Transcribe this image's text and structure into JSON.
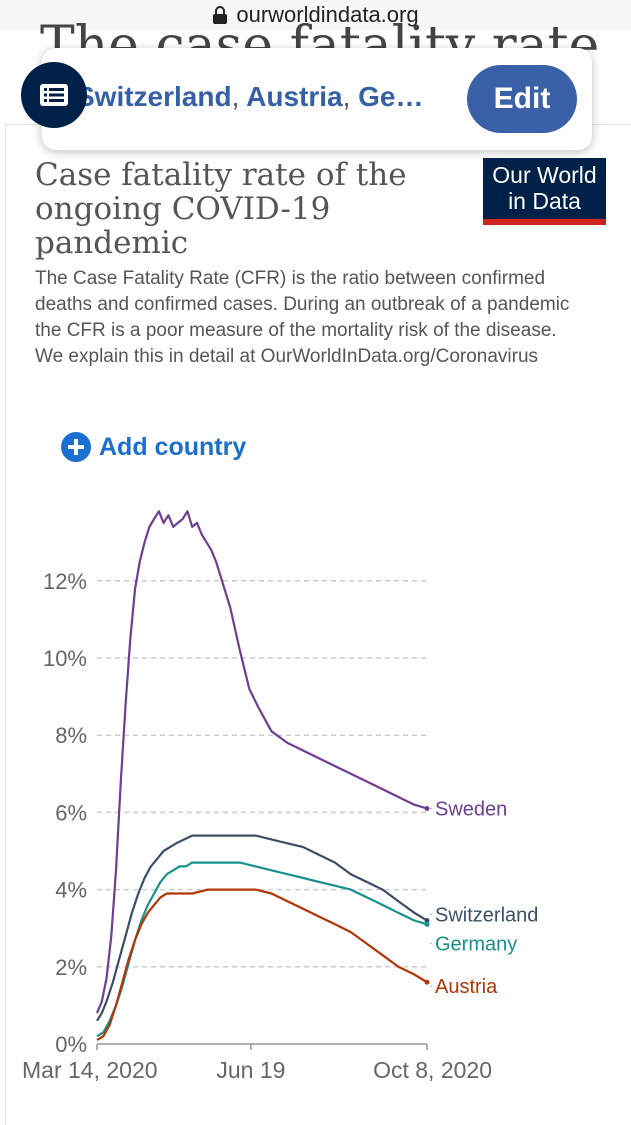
{
  "browser": {
    "url": "ourworldindata.org"
  },
  "header": {
    "ghost_title": "The case fatality rate",
    "countries": [
      "Switzerland",
      "Austria",
      "Ge…"
    ],
    "separator": ",",
    "edit_label": "Edit"
  },
  "logo": {
    "line1": "Our World",
    "line2": "in Data"
  },
  "title": "Case fatality rate of the ongoing COVID-19 pandemic",
  "subtitle": "The Case Fatality Rate (CFR) is the ratio between confirmed deaths and confirmed cases. During an outbreak of a pandemic the CFR is a poor measure of the mortality risk of the disease. We explain this in detail at OurWorldInData.org/Coronavirus",
  "add_country_label": "Add country",
  "colors": {
    "Sweden": "#6d3e91",
    "Switzerland": "#3c4e66",
    "Germany": "#18908b",
    "Austria": "#b13507",
    "grid": "#cccccc",
    "accent": "#1b6fd0"
  },
  "chart_data": {
    "type": "line",
    "title": "Case fatality rate of the ongoing COVID-19 pandemic",
    "xlabel": "",
    "ylabel": "",
    "x_unit": "days since Mar 14, 2020",
    "xlim": [
      0,
      208
    ],
    "ylim": [
      0,
      14
    ],
    "y_ticks": [
      0,
      2,
      4,
      6,
      8,
      10,
      12
    ],
    "y_tick_labels": [
      "0%",
      "2%",
      "4%",
      "6%",
      "8%",
      "10%",
      "12%"
    ],
    "x_tick_labels": [
      {
        "day": 0,
        "label": "Mar 14, 2020"
      },
      {
        "day": 97,
        "label": "Jun 19"
      },
      {
        "day": 208,
        "label": "Oct 8, 2020"
      }
    ],
    "series": [
      {
        "name": "Sweden",
        "x": [
          0,
          3,
          6,
          9,
          12,
          15,
          18,
          21,
          24,
          27,
          30,
          33,
          36,
          39,
          42,
          45,
          48,
          51,
          54,
          57,
          60,
          63,
          66,
          69,
          72,
          75,
          78,
          84,
          90,
          96,
          102,
          110,
          120,
          130,
          140,
          150,
          160,
          170,
          180,
          190,
          200,
          208
        ],
        "y": [
          0.8,
          1.1,
          1.7,
          2.8,
          4.5,
          6.8,
          8.8,
          10.5,
          11.8,
          12.5,
          13.0,
          13.4,
          13.6,
          13.8,
          13.5,
          13.7,
          13.4,
          13.5,
          13.6,
          13.8,
          13.4,
          13.5,
          13.2,
          13.0,
          12.8,
          12.5,
          12.1,
          11.3,
          10.2,
          9.2,
          8.7,
          8.1,
          7.8,
          7.6,
          7.4,
          7.2,
          7.0,
          6.8,
          6.6,
          6.4,
          6.2,
          6.1
        ]
      },
      {
        "name": "Switzerland",
        "x": [
          0,
          3,
          6,
          10,
          14,
          18,
          22,
          26,
          30,
          34,
          38,
          42,
          46,
          50,
          55,
          60,
          70,
          80,
          90,
          100,
          110,
          120,
          130,
          140,
          150,
          160,
          170,
          180,
          190,
          200,
          208
        ],
        "y": [
          0.6,
          0.8,
          1.1,
          1.6,
          2.2,
          2.8,
          3.4,
          3.9,
          4.3,
          4.6,
          4.8,
          5.0,
          5.1,
          5.2,
          5.3,
          5.4,
          5.4,
          5.4,
          5.4,
          5.4,
          5.3,
          5.2,
          5.1,
          4.9,
          4.7,
          4.4,
          4.2,
          4.0,
          3.7,
          3.4,
          3.2
        ]
      },
      {
        "name": "Germany",
        "x": [
          0,
          4,
          8,
          12,
          16,
          20,
          24,
          28,
          32,
          36,
          40,
          44,
          48,
          52,
          56,
          60,
          70,
          80,
          90,
          100,
          110,
          120,
          130,
          140,
          150,
          160,
          170,
          180,
          190,
          200,
          208
        ],
        "y": [
          0.2,
          0.3,
          0.6,
          1.0,
          1.5,
          2.1,
          2.7,
          3.2,
          3.6,
          3.9,
          4.2,
          4.4,
          4.5,
          4.6,
          4.6,
          4.7,
          4.7,
          4.7,
          4.7,
          4.6,
          4.5,
          4.4,
          4.3,
          4.2,
          4.1,
          4.0,
          3.8,
          3.6,
          3.4,
          3.2,
          3.1
        ]
      },
      {
        "name": "Austria",
        "x": [
          0,
          4,
          8,
          12,
          16,
          20,
          24,
          28,
          32,
          36,
          40,
          44,
          48,
          52,
          56,
          60,
          70,
          80,
          90,
          100,
          110,
          120,
          130,
          140,
          150,
          160,
          170,
          180,
          190,
          200,
          208
        ],
        "y": [
          0.1,
          0.2,
          0.5,
          1.0,
          1.6,
          2.2,
          2.7,
          3.1,
          3.4,
          3.6,
          3.8,
          3.9,
          3.9,
          3.9,
          3.9,
          3.9,
          4.0,
          4.0,
          4.0,
          4.0,
          3.9,
          3.7,
          3.5,
          3.3,
          3.1,
          2.9,
          2.6,
          2.3,
          2.0,
          1.8,
          1.6
        ]
      }
    ],
    "labels": [
      {
        "series": "Sweden",
        "text": "Sweden"
      },
      {
        "series": "Switzerland",
        "text": "Switzerland"
      },
      {
        "series": "Germany",
        "text": "Germany"
      },
      {
        "series": "Austria",
        "text": "Austria"
      }
    ]
  }
}
